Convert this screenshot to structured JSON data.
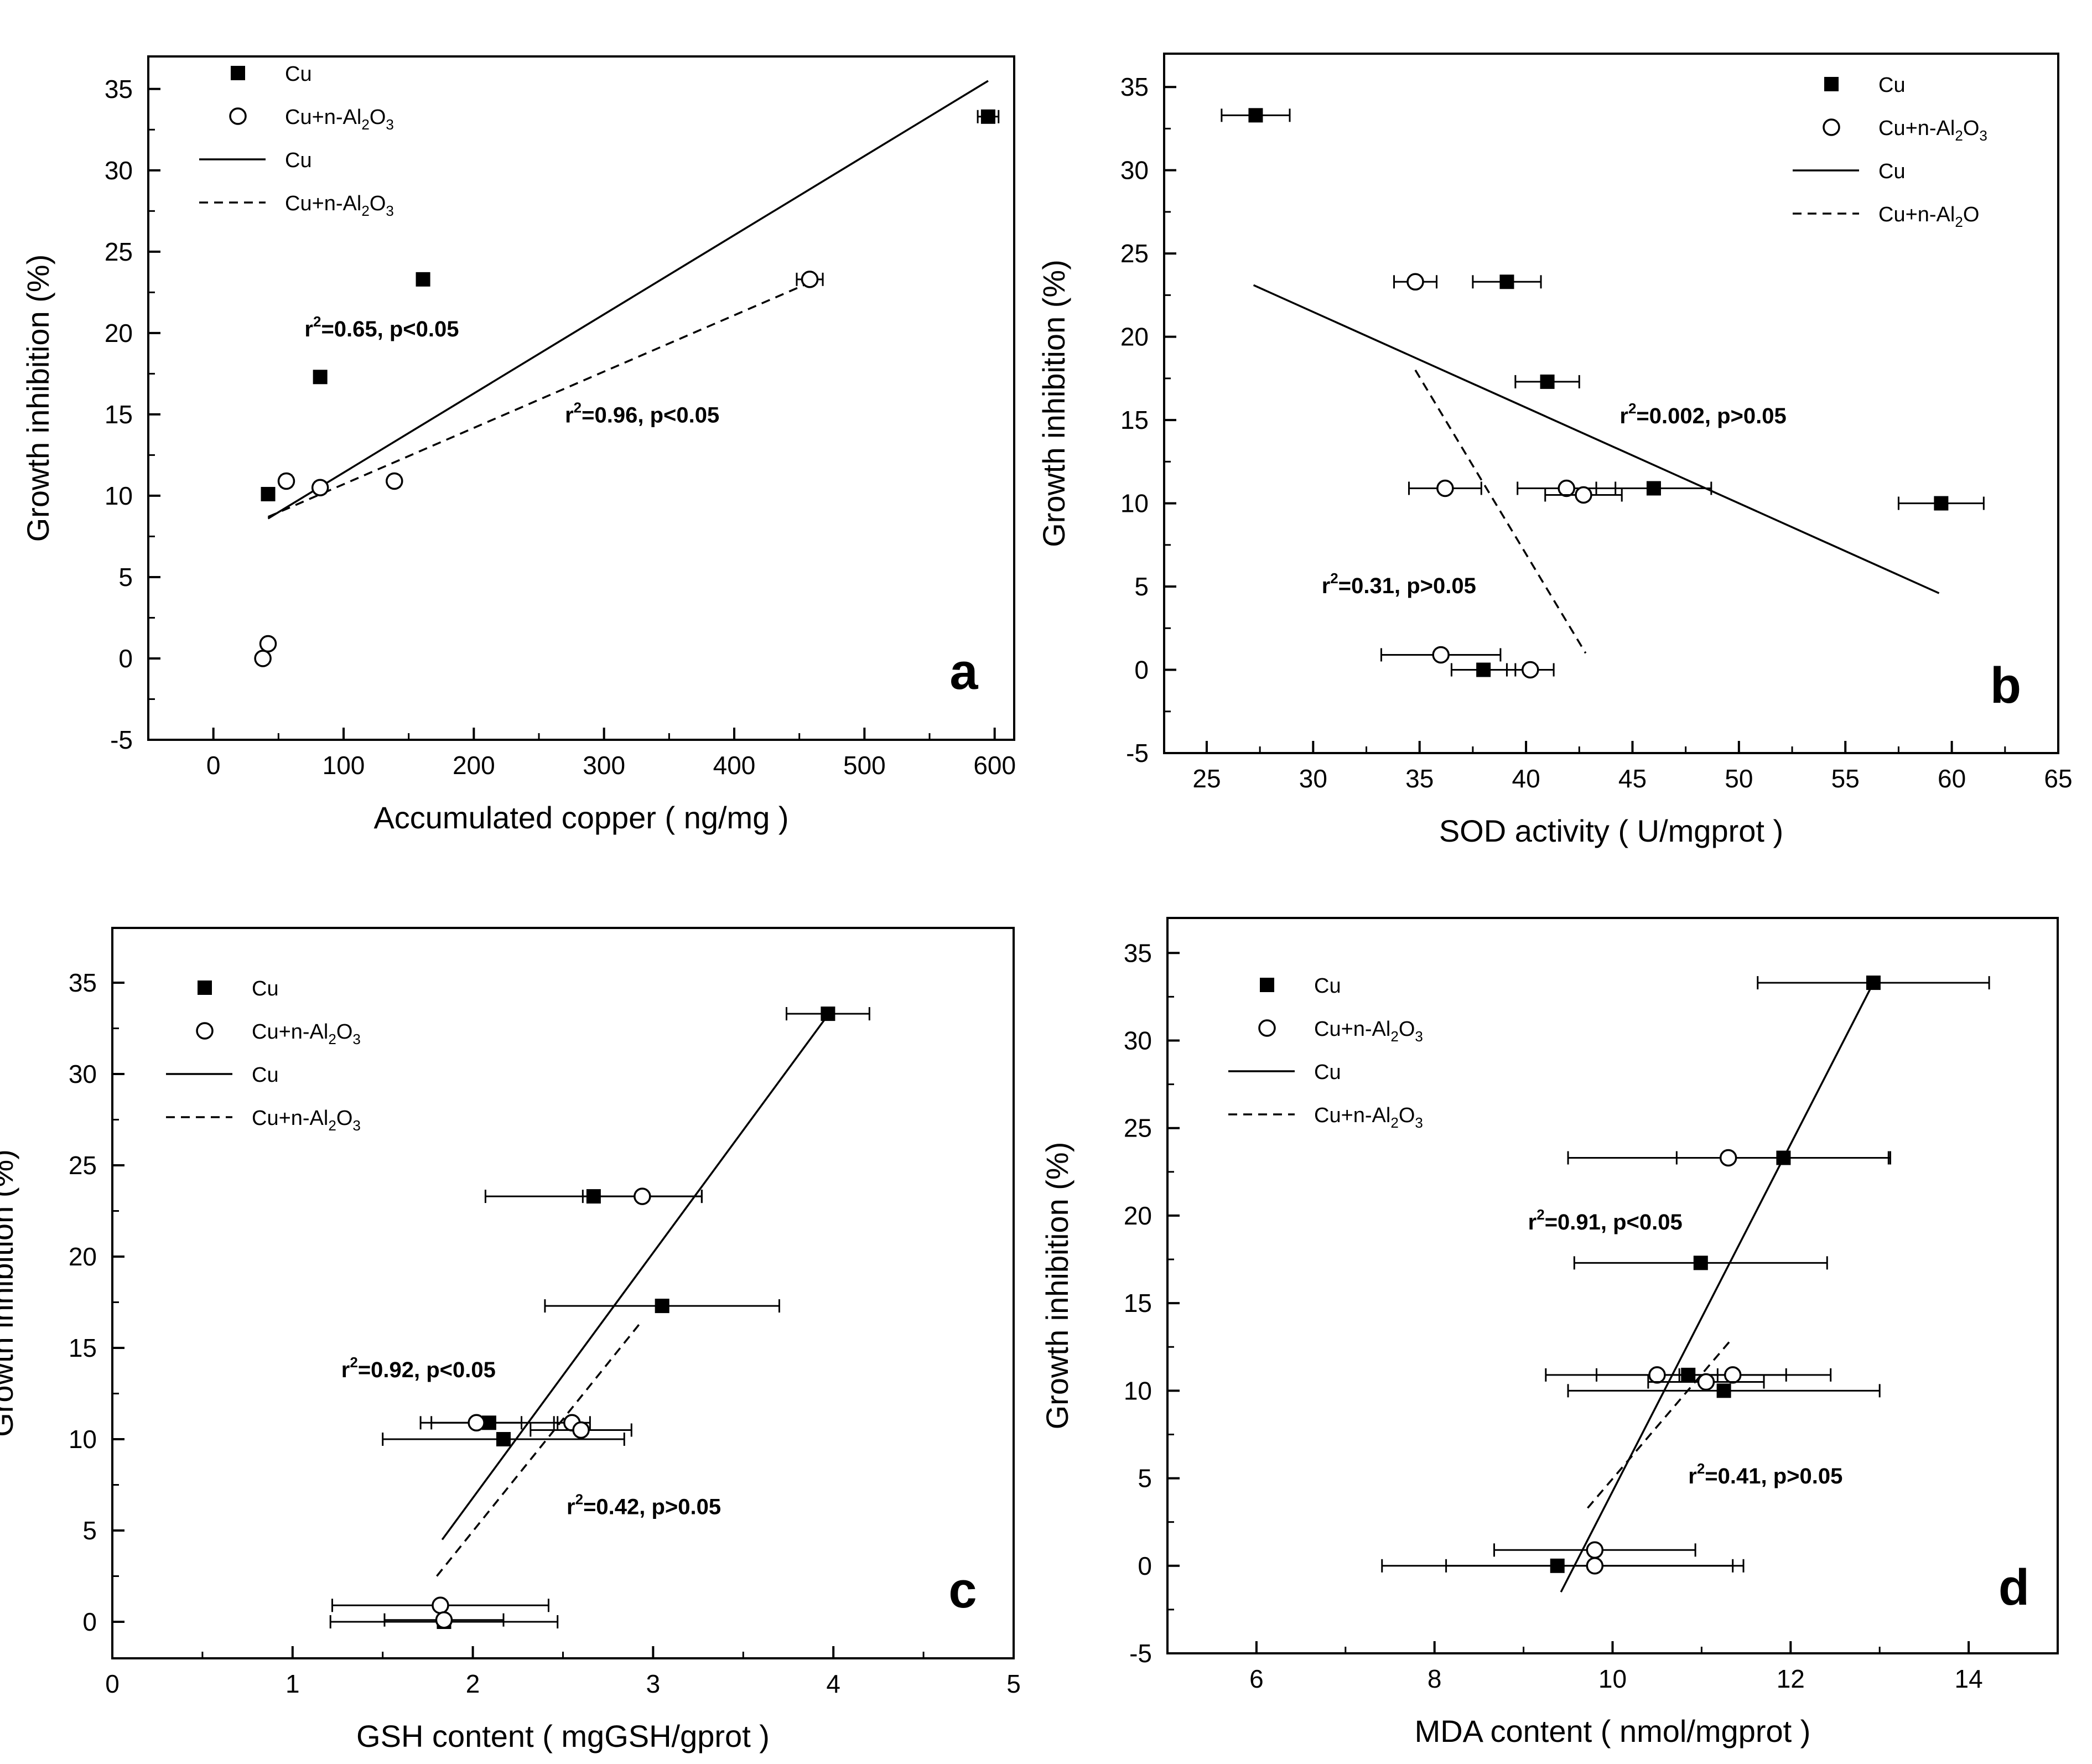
{
  "chart_data": [
    {
      "type": "scatter",
      "panel": "a",
      "title": "",
      "xlabel": "Accumulated copper ( ng/mg )",
      "ylabel": "Growth inhibition (%)",
      "xlim": [
        -50,
        615
      ],
      "ylim": [
        -5,
        37
      ],
      "xticks": [
        0,
        100,
        200,
        300,
        400,
        500,
        600
      ],
      "yticks": [
        -5,
        0,
        5,
        10,
        15,
        20,
        25,
        30,
        35
      ],
      "legend": {
        "position": "top-left",
        "entries": [
          {
            "marker": "square",
            "text": "Cu"
          },
          {
            "marker": "circle",
            "text": "Cu+n-Al",
            "sub": "2",
            "mid": "O",
            "sub2": "3"
          },
          {
            "marker": "solid-line",
            "text": "Cu"
          },
          {
            "marker": "dashed-line",
            "text": "Cu+n-Al",
            "sub": "2",
            "mid": "O",
            "sub2": "3"
          }
        ]
      },
      "series": [
        {
          "name": "Cu",
          "marker": "square",
          "points": [
            {
              "x": 42,
              "y": 10.1,
              "xerr": 3
            },
            {
              "x": 82,
              "y": 17.3,
              "xerr": 3
            },
            {
              "x": 161,
              "y": 23.3,
              "xerr": 3
            },
            {
              "x": 595,
              "y": 33.3,
              "xerr": 8
            }
          ]
        },
        {
          "name": "Cu+n-Al2O3",
          "marker": "circle",
          "points": [
            {
              "x": 38,
              "y": 0,
              "xerr": 3
            },
            {
              "x": 42,
              "y": 0.9,
              "xerr": 3
            },
            {
              "x": 56,
              "y": 10.9,
              "xerr": 4
            },
            {
              "x": 82,
              "y": 10.5,
              "xerr": 4
            },
            {
              "x": 139,
              "y": 10.9,
              "xerr": 4
            },
            {
              "x": 458,
              "y": 23.3,
              "xerr": 10
            }
          ]
        }
      ],
      "fits": [
        {
          "name": "Cu",
          "style": "solid",
          "x": [
            42,
            595
          ],
          "y": [
            8.6,
            35.5
          ]
        },
        {
          "name": "Cu+n-Al2O3",
          "style": "dashed",
          "x": [
            42,
            458
          ],
          "y": [
            8.7,
            23.1
          ]
        }
      ],
      "annotations": [
        {
          "text": "=0.65, p<0.05",
          "xv": 70,
          "yv": 19.8
        },
        {
          "text": "=0.96, p<0.05",
          "xv": 270,
          "yv": 14.5
        }
      ]
    },
    {
      "type": "scatter",
      "panel": "b",
      "title": "",
      "xlabel": "SOD activity ( U/mgprot )",
      "ylabel": "Growth inhibition (%)",
      "xlim": [
        23,
        65
      ],
      "ylim": [
        -5,
        37
      ],
      "xticks": [
        25,
        30,
        35,
        40,
        45,
        50,
        55,
        60,
        65
      ],
      "yticks": [
        -5,
        0,
        5,
        10,
        15,
        20,
        25,
        30,
        35
      ],
      "legend": {
        "position": "top-right",
        "entries": [
          {
            "marker": "square",
            "text": "Cu"
          },
          {
            "marker": "circle",
            "text": "Cu+n-Al",
            "sub": "2",
            "mid": "O",
            "sub2": "3"
          },
          {
            "marker": "solid-line",
            "text": "Cu"
          },
          {
            "marker": "dashed-line",
            "text": "Cu+n-Al",
            "sub": "2",
            "mid": "O",
            "sub2": ""
          }
        ]
      },
      "series": [
        {
          "name": "Cu",
          "marker": "square",
          "points": [
            {
              "x": 27.3,
              "y": 33.3,
              "xerr": 1.6
            },
            {
              "x": 39.1,
              "y": 23.3,
              "xerr": 1.6
            },
            {
              "x": 41.0,
              "y": 17.3,
              "xerr": 1.5
            },
            {
              "x": 46.0,
              "y": 10.9,
              "xerr": 2.7
            },
            {
              "x": 59.5,
              "y": 10.0,
              "xerr": 2.0
            },
            {
              "x": 38.0,
              "y": 0.0,
              "xerr": 1.5
            }
          ]
        },
        {
          "name": "Cu+n-Al2O3",
          "marker": "circle",
          "points": [
            {
              "x": 34.8,
              "y": 23.3,
              "xerr": 1.0
            },
            {
              "x": 36.2,
              "y": 10.9,
              "xerr": 1.7
            },
            {
              "x": 41.9,
              "y": 10.9,
              "xerr": 2.3
            },
            {
              "x": 42.7,
              "y": 10.5,
              "xerr": 1.8
            },
            {
              "x": 36.0,
              "y": 0.9,
              "xerr": 2.8
            },
            {
              "x": 40.2,
              "y": 0.0,
              "xerr": 1.1
            }
          ]
        }
      ],
      "fits": [
        {
          "name": "Cu",
          "style": "solid",
          "x": [
            27.2,
            59.4
          ],
          "y": [
            23.1,
            4.6
          ]
        },
        {
          "name": "Cu+n-Al2O3",
          "style": "dashed",
          "x": [
            34.8,
            42.8
          ],
          "y": [
            18.0,
            1.0
          ]
        }
      ],
      "annotations": [
        {
          "text": "=0.002, p>0.05",
          "xv": 44.4,
          "yv": 14.8
        },
        {
          "text": "=0.31, p>0.05",
          "xv": 30.4,
          "yv": 4.6
        }
      ]
    },
    {
      "type": "scatter",
      "panel": "c",
      "title": "",
      "xlabel": "GSH content ( mgGSH/gprot )",
      "ylabel": "Growth inhibition (%)",
      "xlim": [
        0,
        5
      ],
      "ylim": [
        -2,
        38
      ],
      "xticks": [
        0,
        1,
        2,
        3,
        4,
        5
      ],
      "yticks": [
        0,
        5,
        10,
        15,
        20,
        25,
        30,
        35
      ],
      "legend": {
        "position": "top-left",
        "entries": [
          {
            "marker": "square",
            "text": "Cu"
          },
          {
            "marker": "circle",
            "text": "Cu+n-Al",
            "sub": "2",
            "mid": "O",
            "sub2": "3"
          },
          {
            "marker": "solid-line",
            "text": "Cu"
          },
          {
            "marker": "dashed-line",
            "text": "Cu+n-Al",
            "sub": "2",
            "mid": "O",
            "sub2": "3"
          }
        ]
      },
      "series": [
        {
          "name": "Cu",
          "marker": "square",
          "points": [
            {
              "x": 3.97,
              "y": 33.3,
              "xerr": 0.23
            },
            {
              "x": 2.67,
              "y": 23.3,
              "xerr": 0.6
            },
            {
              "x": 3.05,
              "y": 17.3,
              "xerr": 0.65
            },
            {
              "x": 2.09,
              "y": 10.9,
              "xerr": 0.38
            },
            {
              "x": 2.17,
              "y": 10.0,
              "xerr": 0.67
            },
            {
              "x": 1.84,
              "y": 0.0,
              "xerr": 0.63
            }
          ]
        },
        {
          "name": "Cu+n-Al2O3",
          "marker": "circle",
          "points": [
            {
              "x": 2.94,
              "y": 23.3,
              "xerr": 0.33
            },
            {
              "x": 2.02,
              "y": 10.9,
              "xerr": 0.25
            },
            {
              "x": 2.55,
              "y": 10.9,
              "xerr": 0.1
            },
            {
              "x": 2.6,
              "y": 10.5,
              "xerr": 0.28
            },
            {
              "x": 1.82,
              "y": 0.9,
              "xerr": 0.6
            },
            {
              "x": 1.84,
              "y": 0.1,
              "xerr": 0.33
            }
          ]
        }
      ],
      "fits": [
        {
          "name": "Cu",
          "style": "solid",
          "x": [
            1.83,
            3.99
          ],
          "y": [
            4.5,
            33.5
          ]
        },
        {
          "name": "Cu+n-Al2O3",
          "style": "dashed",
          "x": [
            1.8,
            2.94
          ],
          "y": [
            2.5,
            16.5
          ]
        }
      ],
      "annotations": [
        {
          "text": "=0.92, p<0.05",
          "xv": 1.27,
          "yv": 13.4
        },
        {
          "text": "=0.42, p>0.05",
          "xv": 2.52,
          "yv": 5.9
        }
      ]
    },
    {
      "type": "scatter",
      "panel": "d",
      "title": "",
      "xlabel": "MDA content ( nmol/mgprot )",
      "ylabel": "Growth inhibition (%)",
      "xlim": [
        5,
        15
      ],
      "ylim": [
        -5,
        37
      ],
      "xticks": [
        6,
        8,
        10,
        12,
        14
      ],
      "yticks": [
        -5,
        0,
        5,
        10,
        15,
        20,
        25,
        30,
        35
      ],
      "legend": {
        "position": "top-left",
        "entries": [
          {
            "marker": "square",
            "text": "Cu"
          },
          {
            "marker": "circle",
            "text": "Cu+n-Al",
            "sub": "2",
            "mid": "O",
            "sub2": "3"
          },
          {
            "marker": "solid-line",
            "text": "Cu"
          },
          {
            "marker": "dashed-line",
            "text": "Cu+n-Al",
            "sub": "2",
            "mid": "O",
            "sub2": "3"
          }
        ]
      },
      "series": [
        {
          "name": "Cu",
          "marker": "square",
          "points": [
            {
              "x": 12.93,
              "y": 33.3,
              "xerr": 1.3
            },
            {
              "x": 11.92,
              "y": 23.3,
              "xerr": 1.2
            },
            {
              "x": 10.99,
              "y": 17.3,
              "xerr": 1.42
            },
            {
              "x": 10.85,
              "y": 10.9,
              "xerr": 1.6
            },
            {
              "x": 11.25,
              "y": 10.0,
              "xerr": 1.75
            },
            {
              "x": 9.38,
              "y": 0.0,
              "xerr": 1.97
            }
          ]
        },
        {
          "name": "Cu+n-Al2O3",
          "marker": "circle",
          "points": [
            {
              "x": 11.3,
              "y": 23.3,
              "xerr": 1.8
            },
            {
              "x": 10.5,
              "y": 10.9,
              "xerr": 0.68
            },
            {
              "x": 11.35,
              "y": 10.9,
              "xerr": 0.6
            },
            {
              "x": 11.05,
              "y": 10.5,
              "xerr": 0.65
            },
            {
              "x": 9.8,
              "y": 0.9,
              "xerr": 1.13
            },
            {
              "x": 9.8,
              "y": 0.0,
              "xerr": 1.67
            }
          ]
        }
      ],
      "fits": [
        {
          "name": "Cu",
          "style": "solid",
          "x": [
            9.42,
            12.93
          ],
          "y": [
            -1.5,
            33.3
          ]
        },
        {
          "name": "Cu+n-Al2O3",
          "style": "dashed",
          "x": [
            9.72,
            11.33
          ],
          "y": [
            3.3,
            12.9
          ]
        }
      ],
      "annotations": [
        {
          "text": "=0.91, p<0.05",
          "xv": 9.05,
          "yv": 19.2
        },
        {
          "text": "=0.41, p>0.05",
          "xv": 10.85,
          "yv": 4.7
        }
      ]
    }
  ]
}
